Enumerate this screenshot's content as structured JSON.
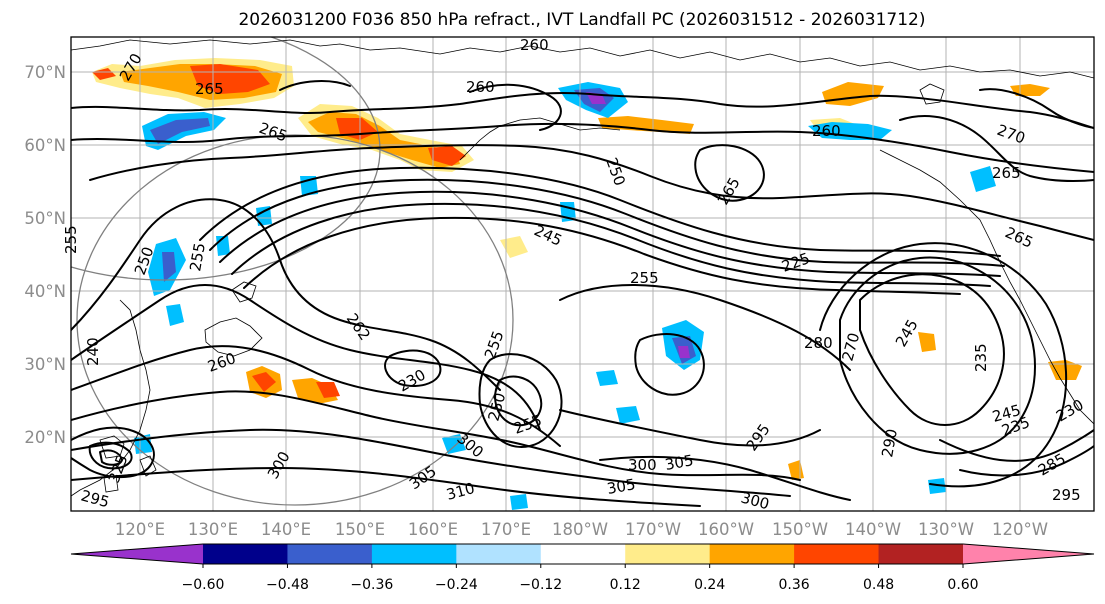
{
  "title": "2026031200 F036 850 hPa refract., IVT Landfall PC (2026031512 - 2026031712)",
  "map": {
    "lat_labels": [
      "70°N",
      "60°N",
      "50°N",
      "40°N",
      "30°N",
      "20°N"
    ],
    "lon_labels": [
      "120°E",
      "130°E",
      "140°E",
      "150°E",
      "160°E",
      "170°E",
      "180°W",
      "170°W",
      "160°W",
      "150°W",
      "140°W",
      "130°W",
      "120°W"
    ],
    "contour_labels": [
      "260",
      "270",
      "265",
      "265",
      "260",
      "260",
      "250",
      "265",
      "270",
      "265",
      "265",
      "245",
      "255",
      "225",
      "255",
      "255",
      "250",
      "262",
      "260",
      "240",
      "255",
      "230",
      "250",
      "255",
      "305",
      "310",
      "305",
      "305",
      "300",
      "295",
      "300",
      "280",
      "270",
      "245",
      "235",
      "245",
      "235",
      "230",
      "285",
      "290",
      "295",
      "325",
      "300",
      "295",
      "300"
    ]
  },
  "colorbar": {
    "colors": [
      "#9932cc",
      "#00008b",
      "#3a5fcd",
      "#00bfff",
      "#b0e2ff",
      "#ffffff",
      "#ffec8b",
      "#ffa500",
      "#ff4500",
      "#b22222",
      "#ff82ab"
    ],
    "tick_labels": [
      "−0.60",
      "−0.48",
      "−0.36",
      "−0.24",
      "−0.12",
      "0.12",
      "0.24",
      "0.36",
      "0.48",
      "0.60"
    ]
  }
}
